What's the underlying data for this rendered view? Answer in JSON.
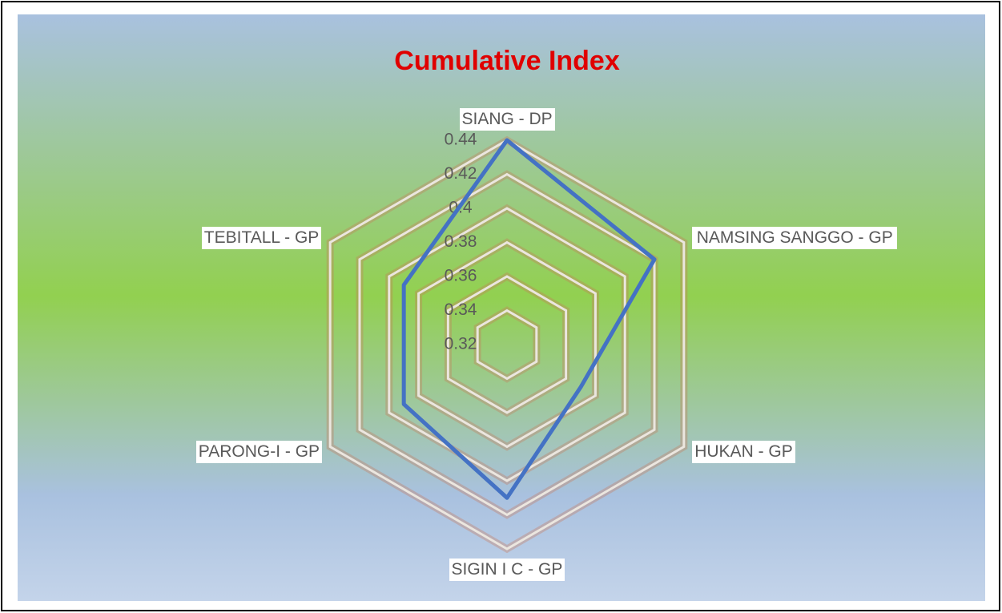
{
  "chart_data": {
    "type": "radar",
    "title": "Cumulative Index",
    "categories": [
      "SIANG - DP",
      "NAMSING SANGGO - GP",
      "HUKAN - GP",
      "SIGIN I C - GP",
      "PARONG-I - GP",
      "TEBITALL - GP"
    ],
    "series": [
      {
        "name": "Cumulative Index",
        "color": "#4472c4",
        "values": [
          0.44,
          0.42,
          0.37,
          0.41,
          0.39,
          0.39
        ]
      }
    ],
    "ylim": [
      0.32,
      0.44
    ],
    "yticks": [
      0.32,
      0.34,
      0.36,
      0.38,
      0.4,
      0.42,
      0.44
    ],
    "grid": true,
    "title_color": "#e00000"
  }
}
